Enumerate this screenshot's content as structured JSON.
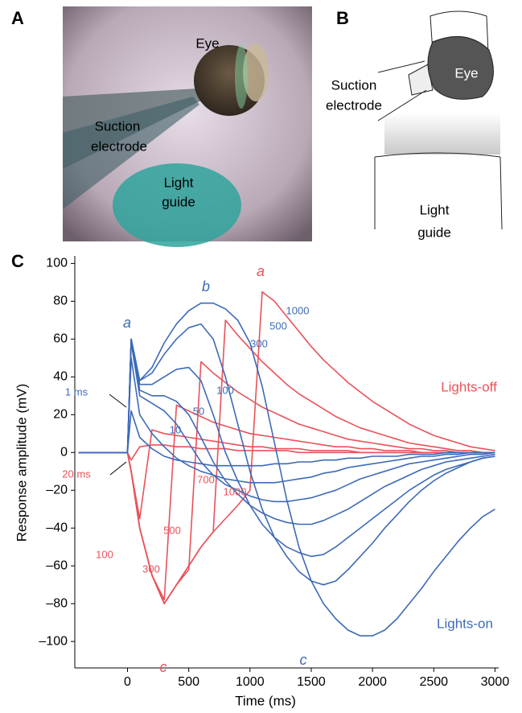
{
  "panel_a": {
    "label": "A",
    "eye": "Eye",
    "electrode": [
      "Suction",
      "electrode"
    ],
    "guide": [
      "Light",
      "guide"
    ]
  },
  "panel_b": {
    "label": "B",
    "eye": "Eye",
    "electrode": [
      "Suction",
      "electrode"
    ],
    "guide": [
      "Light",
      "guide"
    ]
  },
  "chart_data": {
    "type": "line",
    "panel_label": "C",
    "xlabel": "Time (ms)",
    "ylabel": "Response amplitude (mV)",
    "x": [
      -400,
      -300,
      -200,
      -100,
      0,
      30,
      100,
      200,
      300,
      400,
      500,
      600,
      700,
      800,
      900,
      1000,
      1100,
      1200,
      1300,
      1400,
      1500,
      1600,
      1700,
      1800,
      1900,
      2000,
      2100,
      2200,
      2300,
      2400,
      2500,
      2600,
      2700,
      2800,
      2900,
      3000
    ],
    "xlim": [
      -430,
      3030
    ],
    "xticks": [
      0,
      500,
      1000,
      1500,
      2000,
      2500,
      3000
    ],
    "ylim": [
      -114,
      104
    ],
    "yticks": [
      {
        "value": -100,
        "label": "–100"
      },
      {
        "value": -80,
        "label": "–80"
      },
      {
        "value": -60,
        "label": "–60"
      },
      {
        "value": -40,
        "label": "–40"
      },
      {
        "value": -20,
        "label": "–20"
      },
      0,
      20,
      40,
      60,
      80,
      100
    ],
    "series": [
      {
        "name": "1000",
        "color": "#e8525a",
        "values": [
          0,
          0,
          0,
          0,
          0,
          -10,
          -40,
          -65,
          -80,
          -70,
          -60,
          -50,
          -42,
          -35,
          -28,
          -20,
          85,
          80,
          72,
          64,
          56,
          49,
          43,
          37,
          32,
          27,
          23,
          19,
          15,
          12,
          9,
          7,
          5,
          3,
          2,
          1
        ]
      },
      {
        "name": "700",
        "color": "#e8525a",
        "values": [
          0,
          0,
          0,
          0,
          0,
          -10,
          -40,
          -65,
          -80,
          -70,
          -60,
          -50,
          -42,
          70,
          62,
          55,
          48,
          42,
          36,
          31,
          27,
          23,
          19,
          16,
          13,
          11,
          9,
          7,
          5,
          4,
          3,
          2,
          1,
          1,
          0,
          0
        ]
      },
      {
        "name": "500",
        "color": "#e8525a",
        "values": [
          0,
          0,
          0,
          0,
          0,
          -10,
          -40,
          -65,
          -80,
          -70,
          -62,
          48,
          42,
          37,
          32,
          28,
          24,
          21,
          18,
          15,
          13,
          11,
          9,
          7,
          6,
          5,
          4,
          3,
          2,
          2,
          1,
          1,
          0,
          0,
          0,
          0
        ]
      },
      {
        "name": "300",
        "color": "#e8525a",
        "values": [
          0,
          0,
          0,
          0,
          0,
          -10,
          -40,
          -65,
          -78,
          25,
          22,
          19,
          16,
          14,
          12,
          10,
          9,
          8,
          7,
          6,
          5,
          4,
          3,
          3,
          2,
          2,
          1,
          1,
          1,
          0,
          0,
          0,
          0,
          0,
          0,
          0
        ]
      },
      {
        "name": "100",
        "color": "#e8525a",
        "values": [
          0,
          0,
          0,
          0,
          0,
          -10,
          -35,
          12,
          10,
          9,
          8,
          7,
          6,
          5,
          4,
          3,
          3,
          2,
          2,
          2,
          1,
          1,
          1,
          1,
          0,
          0,
          0,
          0,
          0,
          0,
          0,
          0,
          0,
          0,
          0,
          0
        ]
      },
      {
        "name": "20 ms",
        "color": "#e8525a",
        "values": [
          0,
          0,
          0,
          0,
          0,
          -4,
          3,
          4,
          4,
          3,
          3,
          2,
          2,
          2,
          1,
          1,
          1,
          1,
          1,
          0,
          0,
          0,
          0,
          0,
          0,
          0,
          0,
          0,
          0,
          0,
          0,
          0,
          0,
          0,
          0,
          0
        ]
      },
      {
        "name": "1000",
        "color": "#3d6ab8",
        "values": [
          0,
          0,
          0,
          0,
          0,
          60,
          38,
          45,
          58,
          68,
          75,
          79,
          79,
          76,
          70,
          58,
          35,
          5,
          -25,
          -50,
          -68,
          -80,
          -88,
          -94,
          -97,
          -97,
          -94,
          -88,
          -80,
          -72,
          -63,
          -55,
          -47,
          -40,
          -34,
          -30
        ]
      },
      {
        "name": "500",
        "color": "#3d6ab8",
        "values": [
          0,
          0,
          0,
          0,
          0,
          60,
          38,
          42,
          52,
          60,
          66,
          68,
          60,
          40,
          15,
          -10,
          -30,
          -45,
          -55,
          -63,
          -68,
          -70,
          -68,
          -62,
          -55,
          -48,
          -40,
          -33,
          -26,
          -20,
          -15,
          -11,
          -8,
          -5,
          -3,
          -2
        ]
      },
      {
        "name": "300",
        "color": "#3d6ab8",
        "values": [
          0,
          0,
          0,
          0,
          0,
          60,
          36,
          36,
          40,
          44,
          45,
          38,
          20,
          0,
          -15,
          -28,
          -38,
          -45,
          -50,
          -53,
          -55,
          -54,
          -50,
          -45,
          -40,
          -35,
          -30,
          -25,
          -20,
          -16,
          -12,
          -9,
          -7,
          -5,
          -3,
          -2
        ]
      },
      {
        "name": "100",
        "color": "#3d6ab8",
        "values": [
          0,
          0,
          0,
          0,
          0,
          60,
          33,
          30,
          30,
          27,
          20,
          8,
          -5,
          -15,
          -22,
          -28,
          -32,
          -35,
          -37,
          -38,
          -38,
          -36,
          -33,
          -30,
          -26,
          -22,
          -18,
          -15,
          -12,
          -9,
          -7,
          -5,
          -4,
          -3,
          -2,
          -1
        ]
      },
      {
        "name": "50",
        "color": "#3d6ab8",
        "values": [
          0,
          0,
          0,
          0,
          0,
          58,
          30,
          26,
          22,
          15,
          5,
          -5,
          -12,
          -17,
          -20,
          -23,
          -25,
          -26,
          -26,
          -25,
          -24,
          -22,
          -20,
          -17,
          -14,
          -12,
          -10,
          -8,
          -6,
          -5,
          -4,
          -3,
          -2,
          -1,
          -1,
          0
        ]
      },
      {
        "name": "10",
        "color": "#3d6ab8",
        "values": [
          0,
          0,
          0,
          0,
          0,
          50,
          20,
          10,
          3,
          -3,
          -7,
          -10,
          -12,
          -14,
          -15,
          -16,
          -16,
          -16,
          -15,
          -14,
          -13,
          -11,
          -10,
          -8,
          -7,
          -6,
          -5,
          -4,
          -3,
          -2,
          -2,
          -1,
          -1,
          0,
          0,
          0
        ]
      },
      {
        "name": "1 ms",
        "color": "#3d6ab8",
        "values": [
          0,
          0,
          0,
          0,
          0,
          22,
          8,
          2,
          -2,
          -4,
          -5,
          -6,
          -7,
          -7,
          -7,
          -7,
          -7,
          -6,
          -6,
          -5,
          -5,
          -4,
          -4,
          -3,
          -3,
          -2,
          -2,
          -2,
          -1,
          -1,
          -1,
          0,
          0,
          0,
          0,
          0
        ]
      }
    ],
    "annotations": [
      {
        "text": "a",
        "color": "#3d6ab8"
      },
      {
        "text": "b",
        "color": "#3d6ab8"
      },
      {
        "text": "c",
        "color": "#3d6ab8"
      },
      {
        "text": "a",
        "color": "#e8525a"
      },
      {
        "text": "c",
        "color": "#e8525a"
      },
      {
        "text": "Lights-off",
        "color": "#e8525a"
      },
      {
        "text": "Lights-on",
        "color": "#3d6ab8"
      }
    ]
  }
}
